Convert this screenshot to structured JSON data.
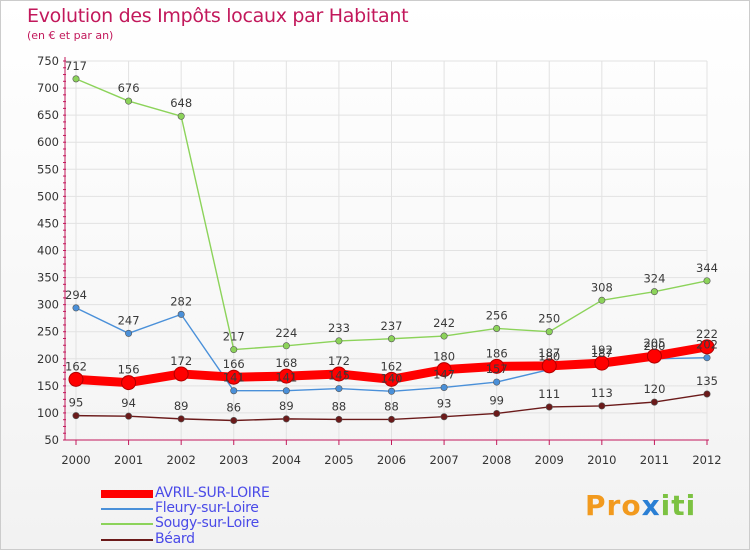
{
  "title": "Evolution des Impôts locaux par Habitant",
  "subtitle": "(en € et par an)",
  "logo": {
    "text_parts": [
      "Pro",
      "x",
      "iti"
    ]
  },
  "colors": {
    "avril": "#ff0000",
    "fleury": "#4a90d9",
    "sougy": "#8cd35a",
    "beard": "#6b1a1a",
    "axis": "#c2185b",
    "tick_text": "#333333"
  },
  "chart_data": {
    "type": "line",
    "title": "Evolution des Impôts locaux par Habitant",
    "subtitle": "(en € et par an)",
    "xlabel": "",
    "ylabel": "",
    "ylim": [
      50,
      750
    ],
    "yticks": [
      50,
      100,
      150,
      200,
      250,
      300,
      350,
      400,
      450,
      500,
      550,
      600,
      650,
      700,
      750
    ],
    "categories": [
      "2000",
      "2001",
      "2002",
      "2003",
      "2004",
      "2005",
      "2006",
      "2007",
      "2008",
      "2009",
      "2010",
      "2011",
      "2012"
    ],
    "legend_position": "bottom-left",
    "series": [
      {
        "name": "AVRIL-SUR-LOIRE",
        "values": [
          162,
          156,
          172,
          166,
          168,
          172,
          162,
          180,
          186,
          187,
          192,
          205,
          222
        ],
        "color": "#ff0000",
        "labels_shown": true
      },
      {
        "name": "Fleury-sur-Loire",
        "values": [
          294,
          247,
          282,
          141,
          141,
          145,
          140,
          147,
          157,
          180,
          187,
          200,
          202
        ],
        "color": "#4a90d9",
        "labels_shown": true
      },
      {
        "name": "Sougy-sur-Loire",
        "values": [
          717,
          676,
          648,
          217,
          224,
          233,
          237,
          242,
          256,
          250,
          308,
          324,
          344
        ],
        "color": "#8cd35a",
        "labels_shown": true
      },
      {
        "name": "Béard",
        "values": [
          95,
          94,
          89,
          86,
          89,
          88,
          88,
          93,
          99,
          111,
          113,
          120,
          135
        ],
        "color": "#6b1a1a",
        "labels_shown": true
      }
    ]
  }
}
